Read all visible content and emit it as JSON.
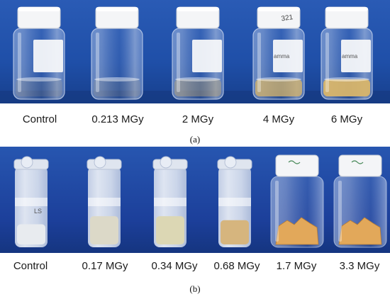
{
  "panel_a": {
    "caption": "(a)",
    "labels": [
      "Control",
      "0.213 MGy",
      "2 MGy",
      "4 MGy",
      "6 MGy"
    ],
    "vial_marks": [
      "",
      "",
      "",
      "321",
      ""
    ],
    "sticker_text": [
      "",
      "",
      "",
      "amma",
      "amma"
    ],
    "colors": {
      "background": "#1f4fa8",
      "liquid_tint": "#d8b56a"
    }
  },
  "panel_b": {
    "caption": "(b)",
    "labels": [
      "Control",
      "0.17 MGy",
      "0.34 MGy",
      "0.68 MGy",
      "1.7 MGy",
      "3.3 MGy"
    ],
    "tube_marks": [
      "LS",
      "",
      "",
      "",
      "",
      ""
    ],
    "colors": {
      "background": "#1c3f9a",
      "solid_tint": "#e2a85a"
    }
  }
}
